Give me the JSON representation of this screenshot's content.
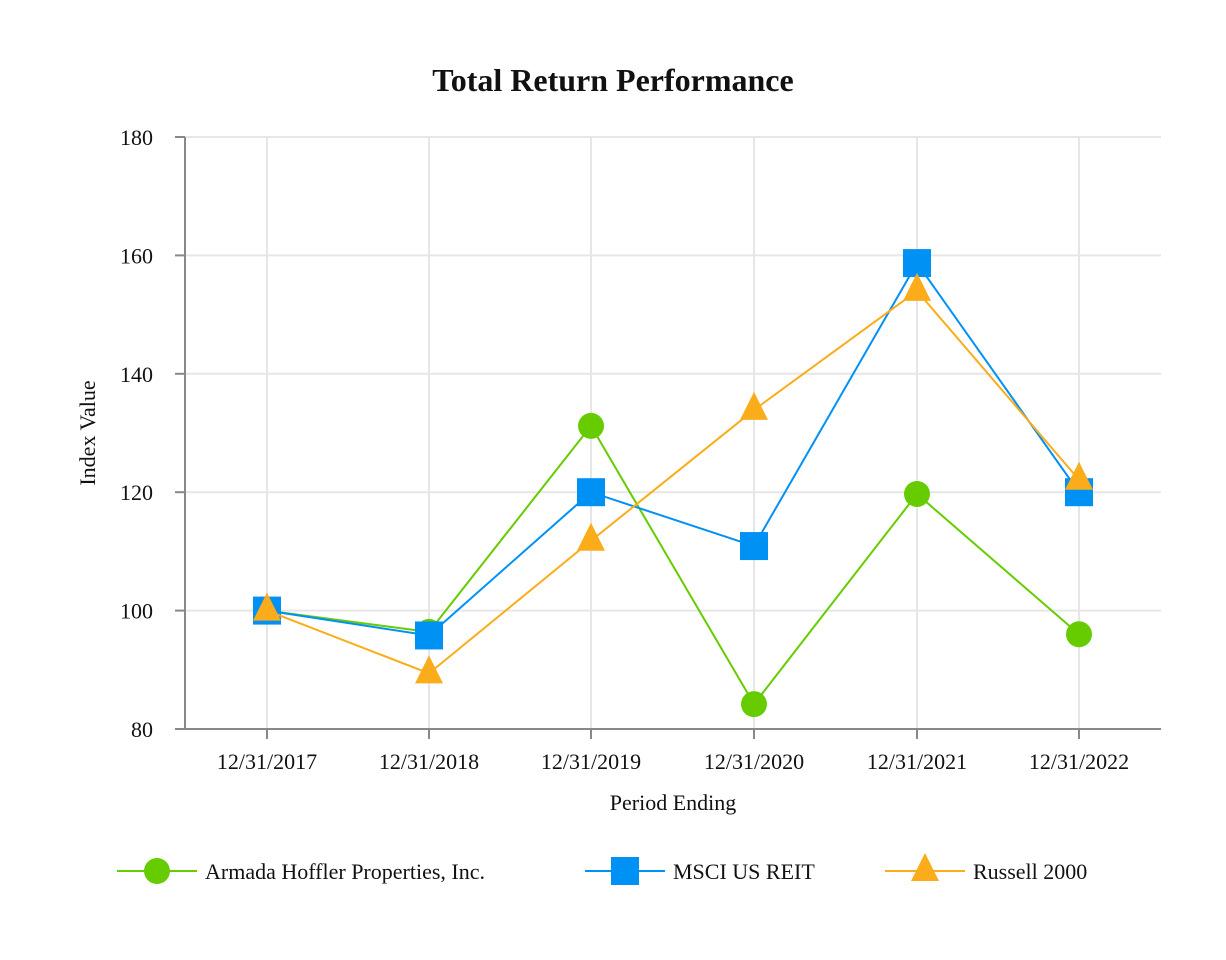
{
  "chart_data": {
    "type": "line",
    "title": "Total Return Performance",
    "xlabel": "Period Ending",
    "ylabel": "Index Value",
    "categories": [
      "12/31/2017",
      "12/31/2018",
      "12/31/2019",
      "12/31/2020",
      "12/31/2021",
      "12/31/2022"
    ],
    "ylim": [
      80,
      180
    ],
    "yticks": [
      80,
      100,
      120,
      140,
      160,
      180
    ],
    "grid": true,
    "legend_position": "bottom",
    "series": [
      {
        "name": "Armada Hoffler Properties, Inc.",
        "color": "#66cc00",
        "marker": "circle",
        "values": [
          100,
          96.4,
          131.2,
          84.2,
          119.7,
          96.0
        ]
      },
      {
        "name": "MSCI US REIT",
        "color": "#0091f4",
        "marker": "square",
        "values": [
          100,
          95.8,
          120.0,
          110.9,
          158.7,
          120.0
        ]
      },
      {
        "name": "Russell 2000",
        "color": "#fbac1b",
        "marker": "triangle",
        "values": [
          100,
          89.4,
          111.8,
          133.9,
          154.0,
          122.1
        ]
      }
    ]
  }
}
